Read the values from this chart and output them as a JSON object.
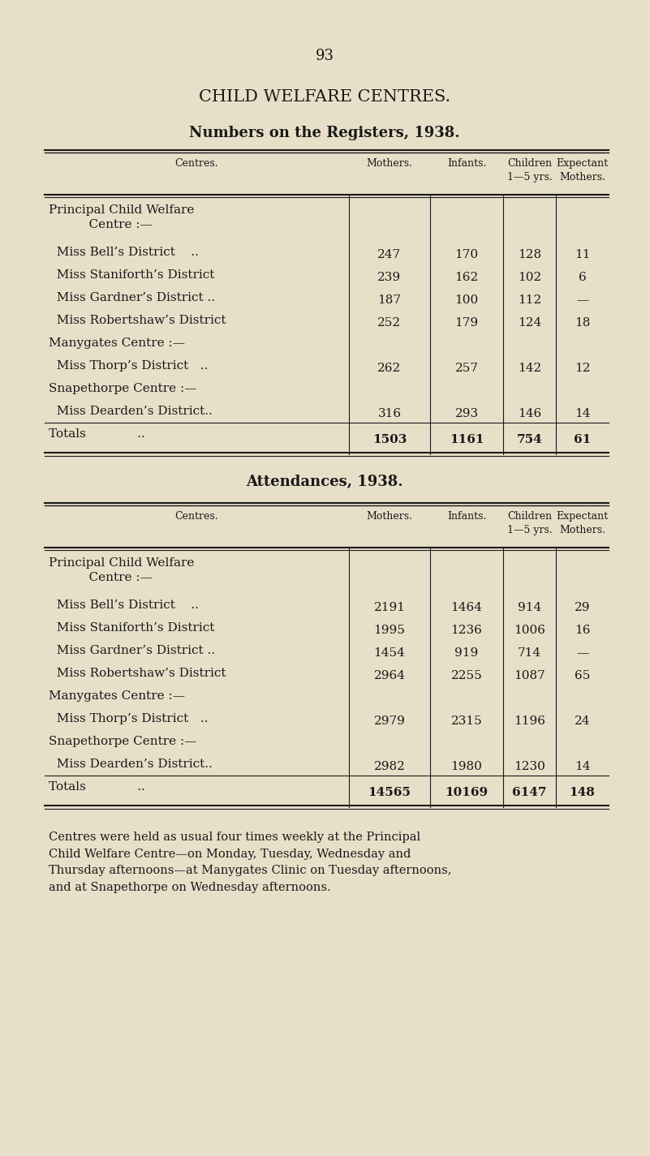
{
  "bg_color": "#e8dfc8",
  "text_color": "#1a1a1a",
  "page_number": "93",
  "main_title": "CHILD WELFARE CENTRES.",
  "table1_title": "Numbers on the Registers, 1938.",
  "table2_title": "Attendances, 1938.",
  "col_headers": [
    "Centres.",
    "Mothers.",
    "Infants.",
    "Children\n1—5 yrs.",
    "Expectant\nMothers."
  ],
  "table1_rows": [
    [
      "Principal Child Welfare\n    Centre :—",
      "",
      "",
      "",
      ""
    ],
    [
      "  Miss Bell’s District    ..",
      "247",
      "170",
      "128",
      "11"
    ],
    [
      "  Miss Staniforth’s District",
      "239",
      "162",
      "102",
      "6"
    ],
    [
      "  Miss Gardner’s District ..",
      "187",
      "100",
      "112",
      "—"
    ],
    [
      "  Miss Robertshaw’s District",
      "252",
      "179",
      "124",
      "18"
    ],
    [
      "Manygates Centre :—",
      "",
      "",
      "",
      ""
    ],
    [
      "  Miss Thorp’s District   ..",
      "262",
      "257",
      "142",
      "12"
    ],
    [
      "Snapethorpe Centre :—",
      "",
      "",
      "",
      ""
    ],
    [
      "  Miss Dearden’s District..",
      "316",
      "293",
      "146",
      "14"
    ],
    [
      "Totals             ..",
      "1503",
      "1161",
      "754",
      "61"
    ]
  ],
  "table2_rows": [
    [
      "Principal Child Welfare\n    Centre :—",
      "",
      "",
      "",
      ""
    ],
    [
      "  Miss Bell’s District    ..",
      "2191",
      "1464",
      "914",
      "29"
    ],
    [
      "  Miss Staniforth’s District",
      "1995",
      "1236",
      "1006",
      "16"
    ],
    [
      "  Miss Gardner’s District ..",
      "1454",
      "919",
      "714",
      "—"
    ],
    [
      "  Miss Robertshaw’s District",
      "2964",
      "2255",
      "1087",
      "65"
    ],
    [
      "Manygates Centre :—",
      "",
      "",
      "",
      ""
    ],
    [
      "  Miss Thorp’s District   ..",
      "2979",
      "2315",
      "1196",
      "24"
    ],
    [
      "Snapethorpe Centre :—",
      "",
      "",
      "",
      ""
    ],
    [
      "  Miss Dearden’s District..",
      "2982",
      "1980",
      "1230",
      "14"
    ],
    [
      "Totals             ..",
      "14565",
      "10169",
      "6147",
      "148"
    ]
  ],
  "footer_text": "Centres were held as usual four times weekly at the Principal\nChild Welfare Centre—on Monday, Tuesday, Wednesday and\nThursday afternoons—at Manygates Clinic on Tuesday afternoons,\nand at Snapethorpe on Wednesday afternoons."
}
